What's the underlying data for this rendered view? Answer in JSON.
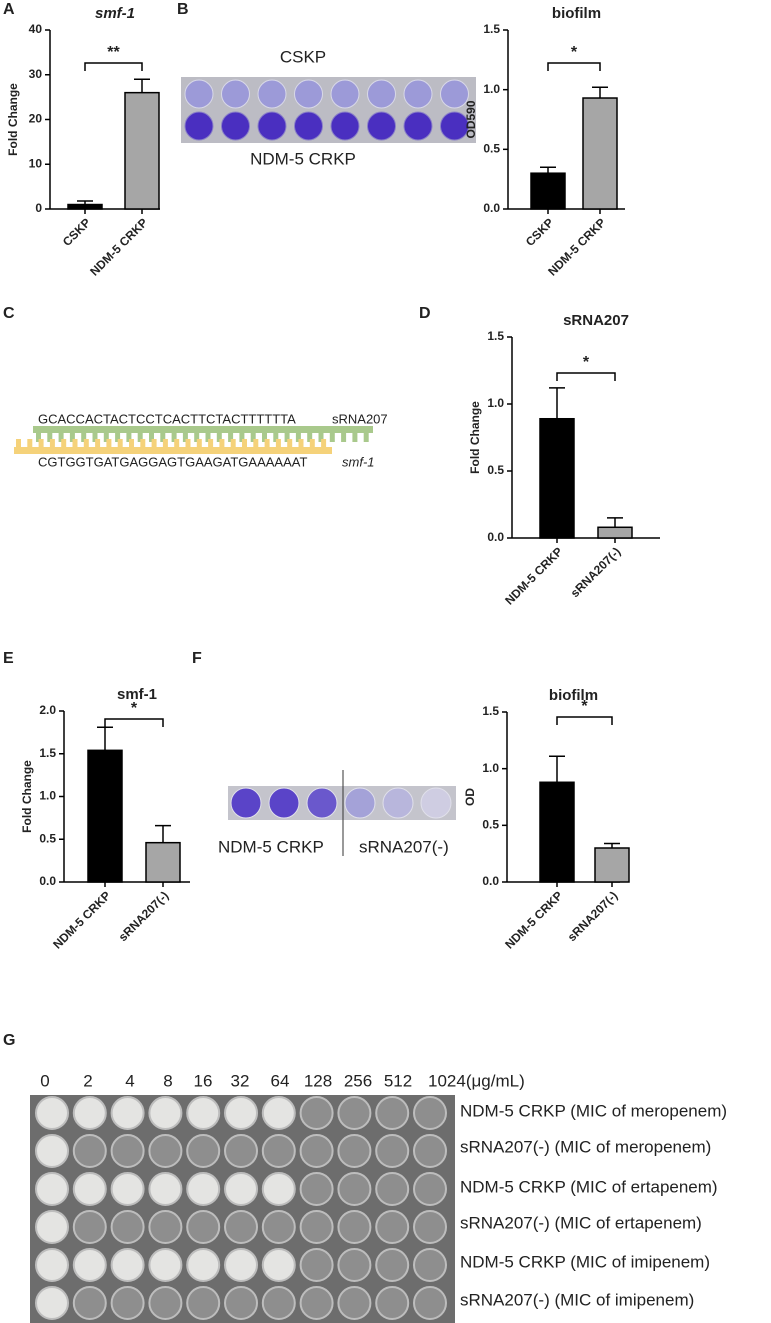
{
  "panel_letters": [
    "A",
    "B",
    "C",
    "D",
    "E",
    "F",
    "G"
  ],
  "chart_data": [
    {
      "type": "bar",
      "title": "smf-1",
      "ylabel": "Fold Change",
      "categories": [
        "CSKP",
        "NDM-5 CRKP"
      ],
      "values": [
        1,
        26
      ],
      "errors": [
        0.8,
        3
      ],
      "colors": [
        "#000000",
        "#a6a6a6"
      ],
      "ylim": [
        0,
        40
      ],
      "yticks": [
        0,
        10,
        20,
        30,
        40
      ],
      "annotation": "**"
    },
    {
      "type": "bar",
      "title": "biofilm",
      "ylabel": "OD590",
      "categories": [
        "CSKP",
        "NDM-5 CRKP"
      ],
      "values": [
        0.3,
        0.93
      ],
      "errors": [
        0.05,
        0.09
      ],
      "colors": [
        "#000000",
        "#a6a6a6"
      ],
      "ylim": [
        0,
        1.5
      ],
      "yticks": [
        {
          "value": 0,
          "label": "0.0"
        },
        0.5,
        {
          "value": 1,
          "label": "1.0"
        },
        1.5
      ],
      "annotation": "*"
    },
    {
      "type": "bar",
      "title": "sRNA207",
      "ylabel": "Fold Change",
      "categories": [
        "NDM-5 CRKP",
        "sRNA207(-)"
      ],
      "values": [
        0.89,
        0.08
      ],
      "errors": [
        0.23,
        0.07
      ],
      "colors": [
        "#000000",
        "#a6a6a6"
      ],
      "ylim": [
        0,
        1.5
      ],
      "yticks": [
        {
          "value": 0,
          "label": "0.0"
        },
        0.5,
        {
          "value": 1,
          "label": "1.0"
        },
        1.5
      ],
      "annotation": "*"
    },
    {
      "type": "bar",
      "title": "smf-1",
      "ylabel": "Fold Change",
      "categories": [
        "NDM-5 CRKP",
        "sRNA207(-)"
      ],
      "values": [
        1.54,
        0.46
      ],
      "errors": [
        0.27,
        0.2
      ],
      "colors": [
        "#000000",
        "#a6a6a6"
      ],
      "ylim": [
        0,
        2
      ],
      "yticks": [
        {
          "value": 0,
          "label": "0.0"
        },
        0.5,
        {
          "value": 1,
          "label": "1.0"
        },
        1.5,
        {
          "value": 2,
          "label": "2.0"
        }
      ],
      "annotation": "*"
    },
    {
      "type": "bar",
      "title": "biofilm",
      "ylabel": "OD",
      "categories": [
        "NDM-5 CRKP",
        "sRNA207(-)"
      ],
      "values": [
        0.88,
        0.3
      ],
      "errors": [
        0.23,
        0.04
      ],
      "colors": [
        "#000000",
        "#a6a6a6"
      ],
      "ylim": [
        0,
        1.5
      ],
      "yticks": [
        {
          "value": 0,
          "label": "0.0"
        },
        0.5,
        {
          "value": 1,
          "label": "1.0"
        },
        1.5
      ],
      "annotation": "*"
    }
  ],
  "plate_b": {
    "top": "CSKP",
    "bottom": "NDM-5 CRKP"
  },
  "sequence": {
    "srna": "GCACCACTACTCCTCACTTCTACTTTTTTA",
    "srna_name": "sRNA207",
    "target": "CGTGGTGATGAGGAGTGAAGATGAAAAAAT",
    "target_name": "smf-1"
  },
  "plate_f": {
    "left": "NDM-5 CRKP",
    "right": "sRNA207(-)"
  },
  "plate_g": {
    "concentrations": [
      "0",
      "2",
      "4",
      "8",
      "16",
      "32",
      "64",
      "128",
      "256",
      "512",
      "1024(μg/mL)"
    ],
    "rows": [
      "NDM-5 CRKP (MIC of meropenem)",
      "sRNA207(-) (MIC of meropenem)",
      "NDM-5 CRKP (MIC of ertapenem)",
      "sRNA207(-) (MIC of ertapenem)",
      "NDM-5 CRKP (MIC of imipenem)",
      "sRNA207(-) (MIC of imipenem)"
    ]
  }
}
